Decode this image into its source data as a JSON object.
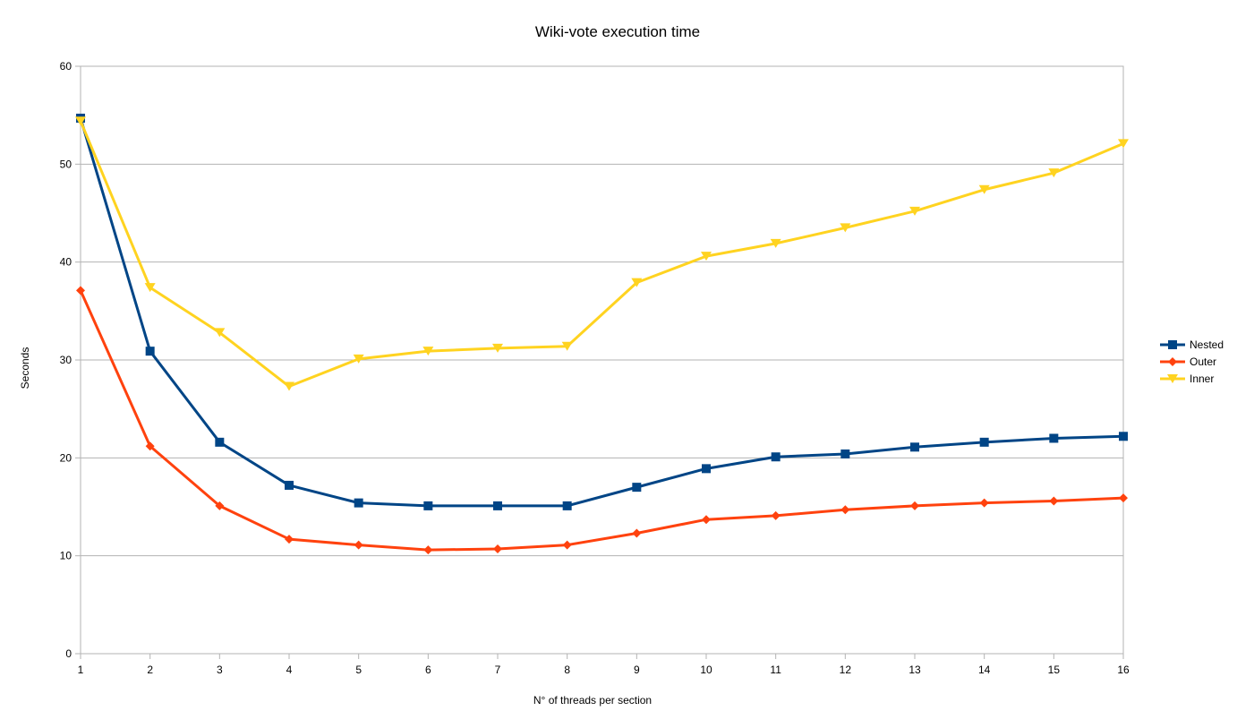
{
  "chart_data": {
    "type": "line",
    "title": "Wiki-vote execution time",
    "xlabel": "N° of threads per section",
    "ylabel": "Seconds",
    "categories": [
      "1",
      "2",
      "3",
      "4",
      "5",
      "6",
      "7",
      "8",
      "9",
      "10",
      "11",
      "12",
      "13",
      "14",
      "15",
      "16"
    ],
    "ylim": [
      0,
      60
    ],
    "yticks": [
      "0",
      "10",
      "20",
      "30",
      "40",
      "50",
      "60"
    ],
    "grid": true,
    "legend_position": "right",
    "series": [
      {
        "name": "Nested",
        "color": "#004586",
        "marker": "square",
        "values": [
          54.7,
          30.9,
          21.6,
          17.2,
          15.4,
          15.1,
          15.1,
          15.1,
          17.0,
          18.9,
          20.1,
          20.4,
          21.1,
          21.6,
          22.0,
          22.2
        ]
      },
      {
        "name": "Outer",
        "color": "#ff420e",
        "marker": "diamond",
        "values": [
          37.1,
          21.2,
          15.1,
          11.7,
          11.1,
          10.6,
          10.7,
          11.1,
          12.3,
          13.7,
          14.1,
          14.7,
          15.1,
          15.4,
          15.6,
          15.9
        ]
      },
      {
        "name": "Inner",
        "color": "#ffd320",
        "marker": "triangle-down",
        "values": [
          54.4,
          37.4,
          32.8,
          27.3,
          30.1,
          30.9,
          31.2,
          31.4,
          37.9,
          40.6,
          41.9,
          43.5,
          45.2,
          47.4,
          49.1,
          52.1
        ]
      }
    ]
  }
}
